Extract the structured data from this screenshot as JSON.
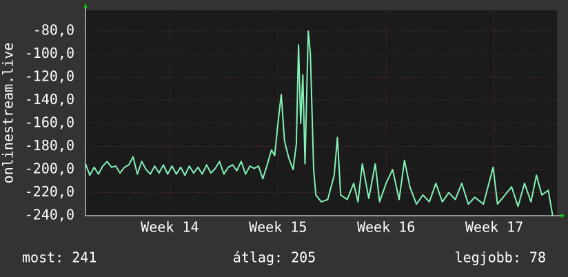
{
  "chart_data": {
    "type": "line",
    "y_label": "onlinestream.live",
    "footer": {
      "current": "most: 241",
      "average": "átlag: 205",
      "best": "legjobb: 78"
    },
    "x": [
      13.22,
      13.26,
      13.3,
      13.34,
      13.38,
      13.42,
      13.46,
      13.5,
      13.54,
      13.58,
      13.62,
      13.66,
      13.7,
      13.74,
      13.78,
      13.82,
      13.86,
      13.9,
      13.94,
      13.98,
      14.02,
      14.06,
      14.1,
      14.14,
      14.18,
      14.22,
      14.26,
      14.3,
      14.34,
      14.38,
      14.42,
      14.46,
      14.5,
      14.54,
      14.58,
      14.62,
      14.66,
      14.7,
      14.74,
      14.78,
      14.82,
      14.86,
      14.9,
      14.94,
      14.97,
      15.0,
      15.03,
      15.06,
      15.1,
      15.14,
      15.17,
      15.19,
      15.21,
      15.23,
      15.25,
      15.28,
      15.3,
      15.33,
      15.35,
      15.4,
      15.46,
      15.52,
      15.55,
      15.58,
      15.64,
      15.7,
      15.74,
      15.78,
      15.84,
      15.9,
      15.94,
      16.0,
      16.06,
      16.12,
      16.17,
      16.22,
      16.28,
      16.34,
      16.4,
      16.46,
      16.52,
      16.58,
      16.64,
      16.7,
      16.76,
      16.82,
      16.9,
      16.99,
      17.03,
      17.1,
      17.16,
      17.22,
      17.28,
      17.34,
      17.39,
      17.44,
      17.5,
      17.54
    ],
    "series": [
      {
        "name": "onlinestream.live",
        "color": "#84f2b6",
        "values": [
          -195,
          -205,
          -198,
          -204,
          -197,
          -193,
          -198,
          -197,
          -203,
          -198,
          -196,
          -189,
          -204,
          -193,
          -200,
          -204,
          -197,
          -203,
          -196,
          -204,
          -197,
          -204,
          -198,
          -205,
          -197,
          -203,
          -198,
          -204,
          -196,
          -203,
          -199,
          -193,
          -204,
          -198,
          -196,
          -201,
          -193,
          -204,
          -197,
          -199,
          -197,
          -208,
          -196,
          -183,
          -188,
          -160,
          -135,
          -175,
          -190,
          -200,
          -178,
          -92,
          -160,
          -118,
          -195,
          -80,
          -100,
          -200,
          -222,
          -228,
          -226,
          -205,
          -172,
          -222,
          -226,
          -212,
          -228,
          -195,
          -225,
          -195,
          -228,
          -212,
          -200,
          -226,
          -192,
          -215,
          -230,
          -222,
          -228,
          -212,
          -228,
          -220,
          -226,
          -212,
          -230,
          -224,
          -230,
          -198,
          -230,
          -222,
          -215,
          -232,
          -212,
          -228,
          -205,
          -222,
          -218,
          -240
        ]
      }
    ],
    "xlim": [
      13.22,
      17.58
    ],
    "xticks": [
      {
        "value": 14,
        "label": "Week 14"
      },
      {
        "value": 15,
        "label": "Week 15"
      },
      {
        "value": 16,
        "label": "Week 16"
      },
      {
        "value": 17,
        "label": "Week 17"
      }
    ],
    "ylim": [
      -240,
      -62
    ],
    "yticks": [
      {
        "value": -240,
        "label": "-240,0"
      },
      {
        "value": -220,
        "label": "-220,0"
      },
      {
        "value": -200,
        "label": "-200,0"
      },
      {
        "value": -180,
        "label": "-180,0"
      },
      {
        "value": -160,
        "label": "-160,0"
      },
      {
        "value": -140,
        "label": "-140,0"
      },
      {
        "value": -120,
        "label": "-120,0"
      },
      {
        "value": -100,
        "label": "-100,0"
      },
      {
        "value": -80,
        "label": "-80,0"
      }
    ],
    "grid": true
  }
}
